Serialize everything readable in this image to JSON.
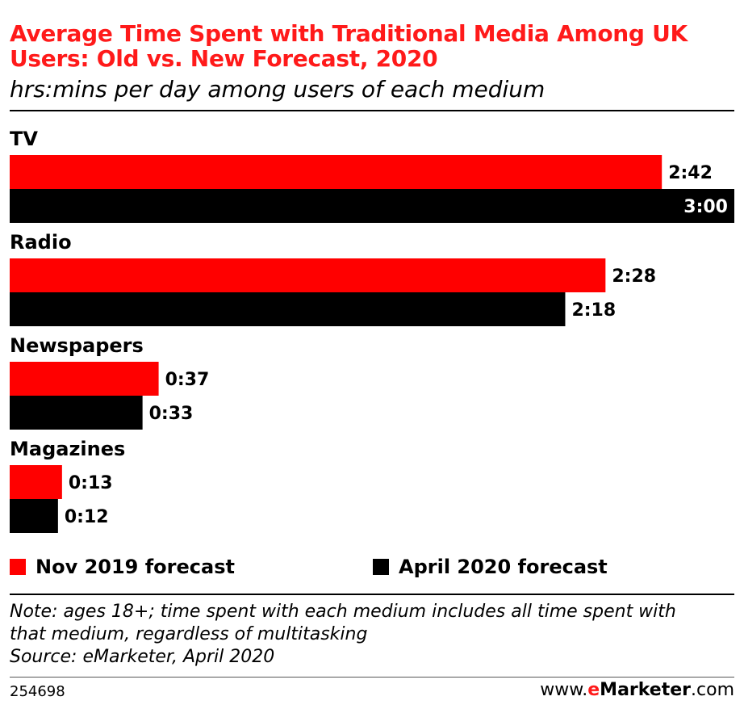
{
  "header": {
    "title": "Average Time Spent with Traditional Media Among UK Users: Old vs. New Forecast, 2020",
    "subtitle": "hrs:mins per day among users of each medium"
  },
  "colors": {
    "accent": "#ff1a1a",
    "series_1": "#ff0000",
    "series_2": "#000000"
  },
  "chart_data": {
    "type": "bar",
    "orientation": "horizontal",
    "categories": [
      "TV",
      "Radio",
      "Newspapers",
      "Magazines"
    ],
    "unit": "hrs:mins",
    "series": [
      {
        "name": "Nov 2019 forecast",
        "color": "#ff0000",
        "values": [
          162,
          148,
          37,
          13
        ],
        "labels": [
          "2:42",
          "2:28",
          "0:37",
          "0:13"
        ]
      },
      {
        "name": "April 2020 forecast",
        "color": "#000000",
        "values": [
          180,
          138,
          33,
          12
        ],
        "labels": [
          "3:00",
          "2:18",
          "0:33",
          "0:12"
        ]
      }
    ],
    "xlim": [
      0,
      180
    ],
    "grid": false,
    "legend": "bottom"
  },
  "footer": {
    "note_lines": [
      "Note: ages 18+; time spent with each medium includes all time spent with",
      "that medium, regardless of multitasking",
      "Source: eMarketer, April 2020"
    ],
    "chart_id": "254698",
    "brand_prefix": "www.",
    "brand_e": "e",
    "brand_marketer": "Marketer",
    "brand_suffix": ".com"
  }
}
